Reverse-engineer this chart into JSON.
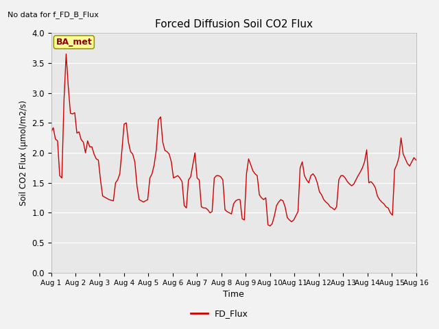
{
  "title": "Forced Diffusion Soil CO2 Flux",
  "xlabel": "Time",
  "ylabel": "Soil CO2 Flux (μmol/m2/s)",
  "ylim": [
    0.0,
    4.0
  ],
  "yticks": [
    0.0,
    0.5,
    1.0,
    1.5,
    2.0,
    2.5,
    3.0,
    3.5,
    4.0
  ],
  "line_color": "#cc0000",
  "line_width": 1.0,
  "plot_bg_color": "#e8e8e8",
  "fig_bg_color": "#f2f2f2",
  "no_data_text": "No data for f_FD_B_Flux",
  "legend_label": "FD_Flux",
  "ba_met_label": "BA_met",
  "xtick_labels": [
    "Aug 1",
    "Aug 2",
    "Aug 3",
    "Aug 4",
    "Aug 5",
    "Aug 6",
    "Aug 7",
    "Aug 8",
    "Aug 9",
    "Aug 10",
    "Aug 11",
    "Aug 12",
    "Aug 13",
    "Aug 14",
    "Aug 15",
    "Aug 16"
  ],
  "flux_data": [
    2.35,
    2.42,
    2.23,
    2.2,
    1.62,
    1.58,
    2.88,
    3.65,
    3.1,
    2.66,
    2.65,
    2.67,
    2.33,
    2.35,
    2.22,
    2.18,
    2.0,
    2.2,
    2.1,
    2.1,
    1.98,
    1.9,
    1.88,
    1.55,
    1.28,
    1.26,
    1.24,
    1.22,
    1.21,
    1.2,
    1.5,
    1.55,
    1.65,
    2.05,
    2.48,
    2.5,
    2.18,
    2.02,
    1.98,
    1.85,
    1.45,
    1.22,
    1.2,
    1.18,
    1.2,
    1.22,
    1.58,
    1.65,
    1.8,
    2.05,
    2.55,
    2.6,
    2.18,
    2.04,
    2.02,
    1.98,
    1.85,
    1.58,
    1.6,
    1.62,
    1.58,
    1.52,
    1.12,
    1.08,
    1.55,
    1.6,
    1.8,
    2.0,
    1.58,
    1.55,
    1.1,
    1.08,
    1.08,
    1.05,
    1.0,
    1.02,
    1.58,
    1.62,
    1.62,
    1.6,
    1.55,
    1.05,
    1.02,
    1.0,
    0.98,
    1.15,
    1.2,
    1.22,
    1.22,
    0.9,
    0.88,
    1.65,
    1.9,
    1.8,
    1.7,
    1.65,
    1.62,
    1.3,
    1.25,
    1.22,
    1.25,
    0.8,
    0.78,
    0.82,
    0.95,
    1.12,
    1.18,
    1.22,
    1.2,
    1.1,
    0.92,
    0.88,
    0.85,
    0.88,
    0.95,
    1.02,
    1.75,
    1.85,
    1.62,
    1.55,
    1.5,
    1.62,
    1.65,
    1.6,
    1.5,
    1.35,
    1.3,
    1.22,
    1.18,
    1.15,
    1.1,
    1.08,
    1.05,
    1.1,
    1.55,
    1.62,
    1.62,
    1.58,
    1.52,
    1.48,
    1.45,
    1.48,
    1.55,
    1.62,
    1.68,
    1.75,
    1.85,
    2.05,
    1.5,
    1.52,
    1.48,
    1.42,
    1.28,
    1.22,
    1.18,
    1.15,
    1.1,
    1.08,
    1.0,
    0.96,
    1.72,
    1.8,
    1.92,
    2.25,
    1.98,
    1.9,
    1.82,
    1.78,
    1.85,
    1.92,
    1.88
  ]
}
